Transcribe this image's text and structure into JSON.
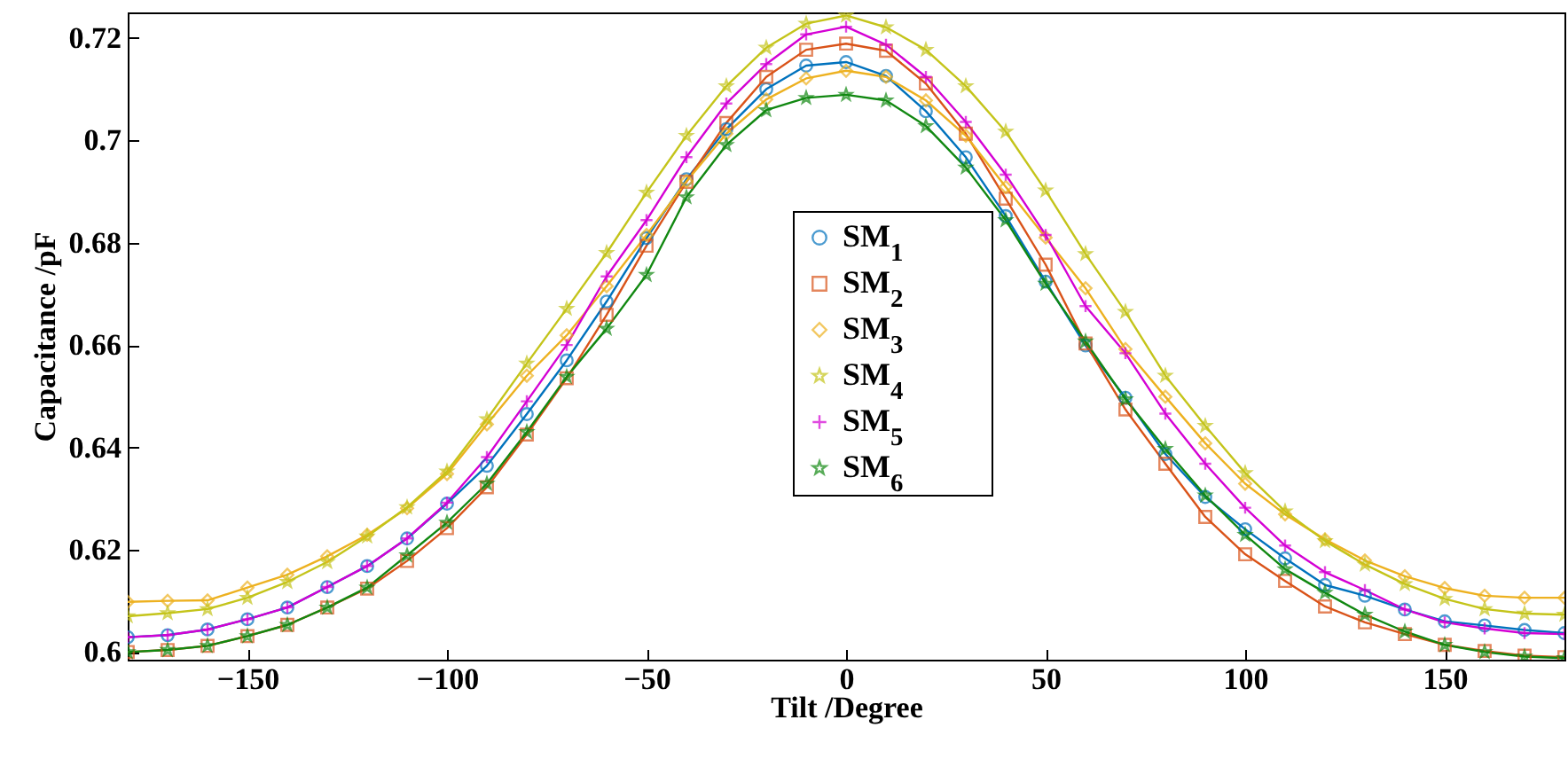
{
  "chart_data": {
    "type": "line",
    "xlabel": "Tilt /Degree",
    "ylabel": "Capacitance /pF",
    "x": [
      -180,
      -170,
      -160,
      -150,
      -140,
      -130,
      -120,
      -110,
      -100,
      -90,
      -80,
      -70,
      -60,
      -50,
      -40,
      -30,
      -20,
      -10,
      0,
      10,
      20,
      30,
      40,
      50,
      60,
      70,
      80,
      90,
      100,
      110,
      120,
      130,
      140,
      150,
      160,
      170,
      180
    ],
    "xlim": [
      -180,
      180
    ],
    "xticks": [
      -150,
      -100,
      -50,
      0,
      50,
      100,
      150
    ],
    "ylim": [
      0.5985,
      0.725
    ],
    "yticks": [
      0.6,
      0.62,
      0.64,
      0.66,
      0.68,
      0.7,
      0.72
    ],
    "grid": false,
    "legend": "center",
    "line_style": "solid",
    "series": [
      {
        "name": "SM$_{1}$",
        "color": "#0072bd",
        "marker": "circle",
        "values": [
          0.6029,
          0.6033,
          0.6044,
          0.6064,
          0.6087,
          0.6127,
          0.6168,
          0.6222,
          0.629,
          0.6364,
          0.6465,
          0.657,
          0.6685,
          0.6809,
          0.6924,
          0.7022,
          0.71,
          0.7146,
          0.7153,
          0.7126,
          0.7057,
          0.6967,
          0.6852,
          0.6724,
          0.6599,
          0.6497,
          0.6387,
          0.6303,
          0.624,
          0.6183,
          0.6131,
          0.611,
          0.6083,
          0.606,
          0.6052,
          0.6043,
          0.6037
        ]
      },
      {
        "name": "SM$_{2}$",
        "color": "#d95319",
        "marker": "square",
        "values": [
          0.6,
          0.6004,
          0.6012,
          0.6031,
          0.6053,
          0.6087,
          0.6124,
          0.6178,
          0.6242,
          0.6322,
          0.6425,
          0.6535,
          0.6659,
          0.6794,
          0.6919,
          0.7034,
          0.7124,
          0.7177,
          0.7189,
          0.7175,
          0.7111,
          0.7013,
          0.6886,
          0.6757,
          0.6603,
          0.6474,
          0.6368,
          0.6264,
          0.6191,
          0.6139,
          0.6089,
          0.6058,
          0.6035,
          0.6014,
          0.6002,
          0.5993,
          0.599
        ]
      },
      {
        "name": "SM$_{3}$",
        "color": "#edb120",
        "marker": "diamond",
        "values": [
          0.6098,
          0.61,
          0.6101,
          0.6126,
          0.6151,
          0.6187,
          0.6229,
          0.6281,
          0.6348,
          0.6445,
          0.654,
          0.6619,
          0.6715,
          0.6815,
          0.692,
          0.7013,
          0.708,
          0.7121,
          0.7136,
          0.7124,
          0.7078,
          0.7009,
          0.6909,
          0.681,
          0.6711,
          0.6592,
          0.6499,
          0.6408,
          0.6329,
          0.6269,
          0.622,
          0.6179,
          0.6148,
          0.6125,
          0.611,
          0.6106,
          0.6106
        ]
      },
      {
        "name": "SM$_{4}$",
        "color": "#c4c41a",
        "marker": "star",
        "values": [
          0.607,
          0.6076,
          0.6084,
          0.6106,
          0.6137,
          0.6176,
          0.6226,
          0.6283,
          0.6353,
          0.6455,
          0.6564,
          0.6671,
          0.678,
          0.6898,
          0.7009,
          0.7106,
          0.7181,
          0.7228,
          0.7244,
          0.7221,
          0.7177,
          0.7106,
          0.7017,
          0.6902,
          0.6778,
          0.6665,
          0.654,
          0.6442,
          0.635,
          0.6275,
          0.6217,
          0.6171,
          0.6133,
          0.6104,
          0.6084,
          0.6075,
          0.6073
        ]
      },
      {
        "name": "SM$_{5}$",
        "color": "#d400d4",
        "marker": "cross",
        "values": [
          0.6029,
          0.6033,
          0.6044,
          0.6064,
          0.6087,
          0.6127,
          0.6168,
          0.6222,
          0.6292,
          0.6381,
          0.649,
          0.66,
          0.6734,
          0.6844,
          0.6967,
          0.7072,
          0.7149,
          0.7207,
          0.7222,
          0.7187,
          0.7124,
          0.7036,
          0.6933,
          0.6815,
          0.6676,
          0.6584,
          0.6466,
          0.6368,
          0.6282,
          0.6208,
          0.6156,
          0.6121,
          0.6083,
          0.6058,
          0.6046,
          0.6037,
          0.6035
        ]
      },
      {
        "name": "SM$_{6}$",
        "color": "#118811",
        "marker": "star",
        "values": [
          0.6,
          0.6004,
          0.6012,
          0.6031,
          0.6053,
          0.6087,
          0.6126,
          0.6189,
          0.6253,
          0.6329,
          0.643,
          0.6538,
          0.6632,
          0.6737,
          0.6889,
          0.6991,
          0.7059,
          0.7083,
          0.7089,
          0.7078,
          0.7028,
          0.6947,
          0.6844,
          0.672,
          0.6607,
          0.6494,
          0.6397,
          0.6306,
          0.6229,
          0.6162,
          0.6116,
          0.6073,
          0.604,
          0.6014,
          0.6,
          0.5991,
          0.5988
        ]
      }
    ]
  }
}
